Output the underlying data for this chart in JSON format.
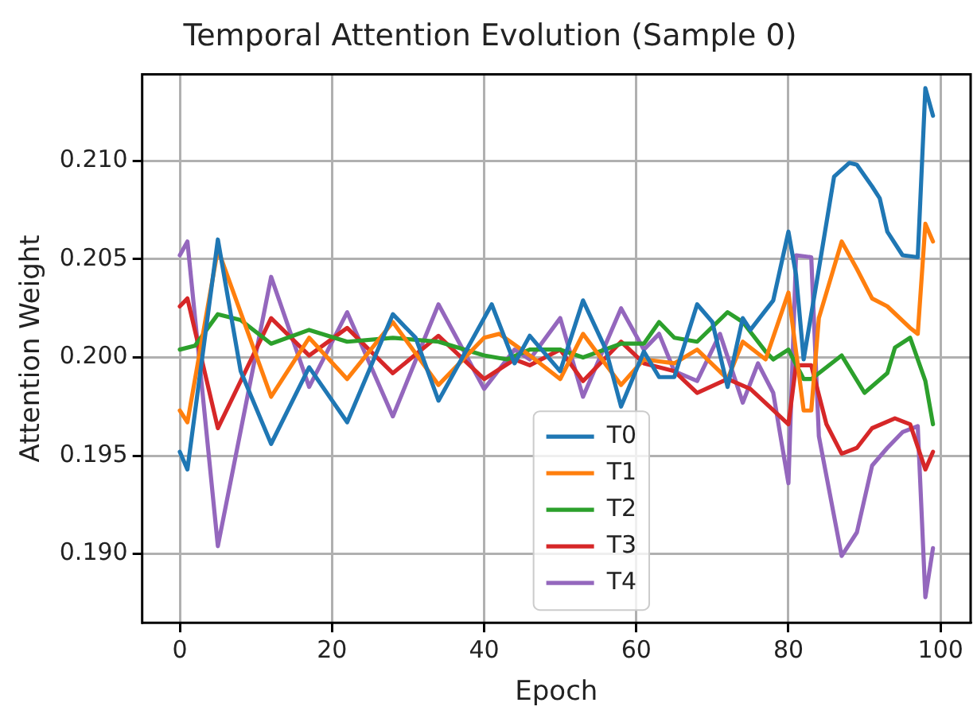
{
  "chart_data": {
    "type": "line",
    "title": "Temporal Attention Evolution (Sample 0)",
    "xlabel": "Epoch",
    "ylabel": "Attention Weight",
    "xlim": [
      -4.95,
      103.95
    ],
    "xticks": [
      0,
      20,
      40,
      60,
      80,
      100
    ],
    "ylim": [
      0.1865,
      0.2144
    ],
    "yticks": [
      {
        "value": 0.19,
        "label": "0.190"
      },
      {
        "value": 0.195,
        "label": "0.195"
      },
      {
        "value": 0.2,
        "label": "0.200"
      },
      {
        "value": 0.205,
        "label": "0.205"
      },
      {
        "value": 0.21,
        "label": "0.210"
      }
    ],
    "grid": true,
    "legend": "bottom",
    "marker": "none",
    "line_style": "solid",
    "series": [
      {
        "name": "T0",
        "color": "#1f77b4",
        "x": [
          0,
          1,
          5,
          8,
          12,
          17,
          22,
          28,
          31,
          34,
          41,
          44,
          46,
          50,
          53,
          56,
          58,
          61,
          63,
          65,
          68,
          70,
          72,
          74,
          75,
          78,
          80,
          81,
          82,
          84,
          86,
          88,
          89,
          91,
          92,
          93,
          95,
          97,
          98,
          99
        ],
        "values": [
          0.1952,
          0.1943,
          0.206,
          0.1993,
          0.1956,
          0.1995,
          0.1967,
          0.2022,
          0.201,
          0.1978,
          0.2027,
          0.1997,
          0.2011,
          0.1993,
          0.2029,
          0.2004,
          0.1975,
          0.2003,
          0.199,
          0.199,
          0.2027,
          0.2018,
          0.1985,
          0.202,
          0.2014,
          0.2029,
          0.2064,
          0.2042,
          0.1999,
          0.2045,
          0.2092,
          0.2099,
          0.2098,
          0.2087,
          0.2081,
          0.2064,
          0.2052,
          0.2051,
          0.2137,
          0.2123
        ]
      },
      {
        "name": "T1",
        "color": "#ff7f0e",
        "x": [
          0,
          1,
          5,
          12,
          17,
          22,
          28,
          34,
          40,
          42,
          46,
          50,
          53,
          58,
          61,
          65,
          68,
          72,
          74,
          77,
          80,
          82,
          83,
          84,
          87,
          89,
          91,
          93,
          96,
          97,
          98,
          99
        ],
        "values": [
          0.1973,
          0.1967,
          0.2055,
          0.198,
          0.201,
          0.1989,
          0.2018,
          0.1986,
          0.201,
          0.2012,
          0.2001,
          0.1989,
          0.2012,
          0.1986,
          0.1999,
          0.1997,
          0.2004,
          0.1989,
          0.2008,
          0.1999,
          0.2033,
          0.1973,
          0.1973,
          0.202,
          0.2059,
          0.2045,
          0.203,
          0.2026,
          0.2015,
          0.2012,
          0.2068,
          0.2059
        ]
      },
      {
        "name": "T2",
        "color": "#2ca02c",
        "x": [
          0,
          2,
          5,
          8,
          12,
          17,
          22,
          28,
          34,
          40,
          43,
          46,
          50,
          53,
          58,
          61,
          63,
          65,
          68,
          72,
          74,
          77,
          78,
          80,
          82,
          83,
          87,
          90,
          93,
          94,
          96,
          98,
          99
        ],
        "values": [
          0.2004,
          0.2006,
          0.2022,
          0.2019,
          0.2007,
          0.2014,
          0.2008,
          0.201,
          0.2008,
          0.2001,
          0.1999,
          0.2004,
          0.2004,
          0.2,
          0.2007,
          0.2007,
          0.2018,
          0.201,
          0.2008,
          0.2023,
          0.2018,
          0.2003,
          0.1999,
          0.2004,
          0.1989,
          0.1989,
          0.2001,
          0.1982,
          0.1992,
          0.2005,
          0.201,
          0.1988,
          0.1966
        ]
      },
      {
        "name": "T3",
        "color": "#d62728",
        "x": [
          0,
          1,
          5,
          12,
          17,
          22,
          28,
          34,
          40,
          44,
          46,
          50,
          53,
          58,
          61,
          65,
          68,
          72,
          75,
          80,
          81,
          83,
          85,
          87,
          89,
          91,
          94,
          96,
          98,
          99
        ],
        "values": [
          0.2026,
          0.203,
          0.1964,
          0.202,
          0.2001,
          0.2015,
          0.1992,
          0.2011,
          0.1989,
          0.1999,
          0.1996,
          0.2004,
          0.1988,
          0.2008,
          0.1997,
          0.1993,
          0.1982,
          0.1989,
          0.1984,
          0.1966,
          0.1996,
          0.1996,
          0.1966,
          0.1951,
          0.1954,
          0.1964,
          0.1969,
          0.1966,
          0.1943,
          0.1952
        ]
      },
      {
        "name": "T4",
        "color": "#9467bd",
        "x": [
          0,
          1,
          5,
          12,
          17,
          22,
          28,
          34,
          40,
          44,
          46,
          50,
          53,
          58,
          61,
          63,
          65,
          68,
          71,
          74,
          76,
          78,
          80,
          81,
          83,
          84,
          87,
          89,
          91,
          93,
          95,
          97,
          98,
          99
        ],
        "values": [
          0.2052,
          0.2059,
          0.1904,
          0.2041,
          0.1985,
          0.2023,
          0.197,
          0.2027,
          0.1984,
          0.2004,
          0.1999,
          0.202,
          0.198,
          0.2025,
          0.2004,
          0.2012,
          0.1993,
          0.1988,
          0.2012,
          0.1977,
          0.1997,
          0.1982,
          0.1936,
          0.2052,
          0.2051,
          0.196,
          0.1899,
          0.1911,
          0.1945,
          0.1954,
          0.1962,
          0.1965,
          0.1878,
          0.1903
        ]
      }
    ]
  }
}
